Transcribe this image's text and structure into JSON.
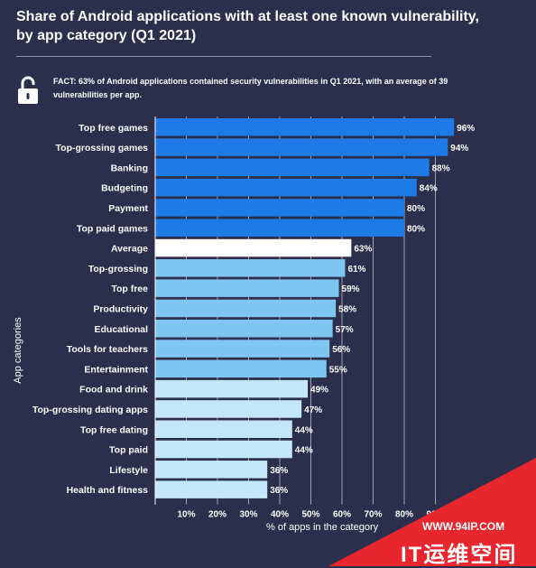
{
  "title_line1": "Share of Android applications with at least one known vulnerability,",
  "title_line2": "by app category  (Q1 2021)",
  "fact": "FACT: 63% of Android applications contained security vulnerabilities in Q1 2021, with an average of 39 vulnerabilities per app.",
  "icons": {
    "lock": "unlocked-padlock-icon"
  },
  "watermark": {
    "url": "WWW.94IP.COM",
    "brand": "IT运维空间"
  },
  "colors": {
    "background": "#2b2f4b",
    "top_group": "#1e7ae6",
    "average": "#ffffff",
    "mid_group": "#7ec5f2",
    "low_group": "#c4e6fb",
    "watermark": "#e8262d"
  },
  "chart_data": {
    "type": "bar",
    "orientation": "horizontal",
    "ylabel": "App categories",
    "xlabel": "% of apps in the category",
    "xlim": [
      0,
      100
    ],
    "xticks": [
      "10%",
      "20%",
      "30%",
      "40%",
      "50%",
      "60%",
      "70%",
      "80%",
      "90%"
    ],
    "grid": true,
    "categories": [
      "Top free games",
      "Top-grossing games",
      "Banking",
      "Budgeting",
      "Payment",
      "Top paid games",
      "Average",
      "Top-grossing",
      "Top free",
      "Productivity",
      "Educational",
      "Tools for teachers",
      "Entertainment",
      "Food and drink",
      "Top-grossing dating apps",
      "Top free dating",
      "Top paid",
      "Lifestyle",
      "Health and fitness"
    ],
    "values": [
      96,
      94,
      88,
      84,
      80,
      80,
      63,
      61,
      59,
      58,
      57,
      56,
      55,
      49,
      47,
      44,
      44,
      36,
      36
    ],
    "value_labels": [
      "96%",
      "94%",
      "88%",
      "84%",
      "80%",
      "80%",
      "63%",
      "61%",
      "59%",
      "58%",
      "57%",
      "56%",
      "55%",
      "49%",
      "47%",
      "44%",
      "44%",
      "36%",
      "36%"
    ],
    "groups": [
      "top",
      "top",
      "top",
      "top",
      "top",
      "top",
      "average",
      "mid",
      "mid",
      "mid",
      "mid",
      "mid",
      "mid",
      "low",
      "low",
      "low",
      "low",
      "low",
      "low"
    ]
  }
}
